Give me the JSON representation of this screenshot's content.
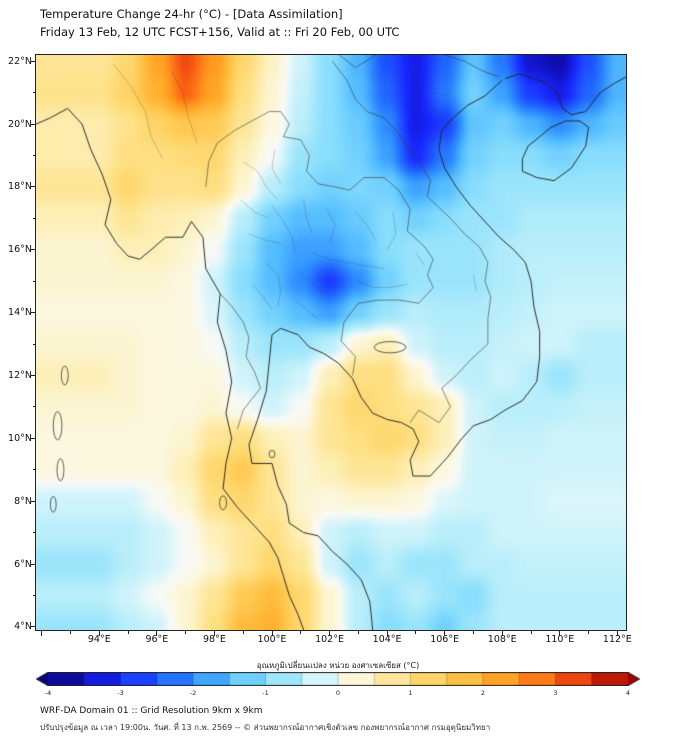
{
  "header": {
    "title_line1": "Temperature Change 24-hr (°C) - [Data Assimilation]",
    "title_line2": "Friday 13 Feb, 12 UTC FCST+156, Valid at :: Fri 20 Feb, 00 UTC"
  },
  "axes": {
    "lat_ticks": [
      {
        "value": 22,
        "label": "22°N"
      },
      {
        "value": 20,
        "label": "20°N"
      },
      {
        "value": 18,
        "label": "18°N"
      },
      {
        "value": 16,
        "label": "16°N"
      },
      {
        "value": 14,
        "label": "14°N"
      },
      {
        "value": 12,
        "label": "12°N"
      },
      {
        "value": 10,
        "label": "10°N"
      },
      {
        "value": 8,
        "label": "8°N"
      },
      {
        "value": 6,
        "label": "6°N"
      },
      {
        "value": 4,
        "label": "4°N"
      }
    ],
    "lon_ticks": [
      {
        "value": 94,
        "label": "94°E"
      },
      {
        "value": 96,
        "label": "96°E"
      },
      {
        "value": 98,
        "label": "98°E"
      },
      {
        "value": 100,
        "label": "100°E"
      },
      {
        "value": 102,
        "label": "102°E"
      },
      {
        "value": 104,
        "label": "104°E"
      },
      {
        "value": 106,
        "label": "106°E"
      },
      {
        "value": 108,
        "label": "108°E"
      },
      {
        "value": 110,
        "label": "110°E"
      },
      {
        "value": 112,
        "label": "112°E"
      }
    ]
  },
  "colorbar": {
    "label": "อุณหภูมิเปลี่ยนแปลง หน่วย องศาเซลเซียส (°C)",
    "range": [
      -4,
      4
    ],
    "ticks": [
      {
        "value": -4,
        "label": "-4"
      },
      {
        "value": -3,
        "label": "-3"
      },
      {
        "value": -2,
        "label": "-2"
      },
      {
        "value": -1,
        "label": "-1"
      },
      {
        "value": 0,
        "label": "0"
      },
      {
        "value": 1,
        "label": "1"
      },
      {
        "value": 2,
        "label": "2"
      },
      {
        "value": 3,
        "label": "3"
      },
      {
        "value": 4,
        "label": "4"
      }
    ]
  },
  "footer": {
    "line1": "WRF-DA Domain 01 :: Grid Resolution 9km x 9km",
    "line2": "ปรับปรุงข้อมูล ณ เวลา 19:00น. วันศ. ที่ 13 ก.พ. 2569 -- © ส่วนพยากรณ์อากาศเชิงตัวเลข กองพยากรณ์อากาศ กรมอุตุนิยมวิทยา"
  },
  "chart_data": {
    "type": "heatmap",
    "title": "Temperature Change 24-hr (°C) - [Data Assimilation]",
    "subtitle": "Friday 13 Feb, 12 UTC FCST+156, Valid at :: Fri 20 Feb, 00 UTC",
    "units": "°C",
    "legend_label": "อุณหภูมิเปลี่ยนแปลง หน่วย องศาเซลเซียส (°C)",
    "lon_range": [
      91.8,
      112.3
    ],
    "lat_range": [
      3.9,
      22.2
    ],
    "colorbar_range": [
      -4,
      4
    ],
    "grid_lon": [
      94,
      95,
      96,
      97,
      98,
      99,
      100,
      101,
      102,
      103,
      104,
      105,
      106,
      107,
      108,
      109,
      110,
      111,
      112
    ],
    "grid_lat": [
      22,
      21,
      20,
      19,
      18,
      17,
      16,
      15,
      14,
      13,
      12,
      11,
      10,
      9,
      8,
      7,
      6,
      5,
      4
    ],
    "values": [
      [
        0.8,
        1.2,
        2.2,
        3.2,
        2.4,
        1.2,
        0.4,
        -0.3,
        -1.0,
        -1.6,
        -2.6,
        -3.2,
        -2.4,
        -1.4,
        -2.2,
        -3.4,
        -3.6,
        -2.6,
        -1.6
      ],
      [
        0.9,
        1.3,
        2.0,
        3.0,
        2.2,
        1.0,
        0.3,
        -0.4,
        -1.0,
        -1.5,
        -2.4,
        -3.2,
        -2.2,
        -1.2,
        -1.8,
        -2.8,
        -3.2,
        -2.4,
        -1.6
      ],
      [
        0.6,
        0.9,
        1.3,
        1.6,
        1.5,
        0.8,
        0.2,
        -0.5,
        -1.0,
        -1.3,
        -2.0,
        -3.2,
        -2.8,
        -1.4,
        -1.2,
        -1.6,
        -2.0,
        -1.6,
        -1.3
      ],
      [
        0.6,
        1.0,
        1.0,
        1.1,
        1.2,
        0.5,
        0.0,
        -0.8,
        -1.0,
        -1.2,
        -1.8,
        -3.0,
        -2.2,
        -1.2,
        -1.0,
        -1.0,
        -1.2,
        -1.0,
        -1.0
      ],
      [
        0.8,
        1.2,
        0.9,
        0.9,
        1.0,
        0.3,
        -0.5,
        -1.0,
        -1.2,
        -1.1,
        -1.2,
        -1.8,
        -1.5,
        -1.0,
        -0.8,
        -0.8,
        -0.8,
        -0.8,
        -0.8
      ],
      [
        0.5,
        0.8,
        0.6,
        0.5,
        0.3,
        -0.5,
        -1.2,
        -1.5,
        -1.5,
        -1.3,
        -1.0,
        -1.2,
        -1.0,
        -0.8,
        -0.8,
        -0.6,
        -0.6,
        -0.6,
        -0.6
      ],
      [
        0.3,
        0.5,
        0.5,
        0.3,
        0.0,
        -0.8,
        -1.5,
        -1.8,
        -1.8,
        -1.5,
        -1.0,
        -0.8,
        -0.8,
        -0.8,
        -0.6,
        -0.5,
        -0.5,
        -0.5,
        -0.5
      ],
      [
        0.3,
        0.3,
        0.3,
        0.2,
        -0.3,
        -1.0,
        -1.5,
        -2.0,
        -2.8,
        -2.0,
        -1.2,
        -0.8,
        -0.8,
        -0.8,
        -0.6,
        -0.5,
        -0.4,
        -0.4,
        -0.4
      ],
      [
        0.2,
        0.2,
        0.2,
        0.2,
        -0.2,
        -0.8,
        -1.2,
        -1.5,
        -1.8,
        -1.2,
        -0.8,
        -0.5,
        -0.6,
        -0.6,
        -0.5,
        -0.4,
        -0.3,
        -0.3,
        -0.3
      ],
      [
        0.3,
        0.3,
        0.2,
        0.2,
        0.0,
        -0.5,
        -0.8,
        -0.8,
        -0.5,
        0.3,
        0.5,
        -0.3,
        -0.5,
        -0.5,
        -0.4,
        -0.3,
        -0.3,
        -0.5,
        -0.5
      ],
      [
        0.5,
        0.3,
        0.2,
        0.2,
        0.2,
        -0.3,
        -0.5,
        -0.3,
        0.5,
        1.0,
        1.0,
        0.3,
        -0.3,
        -0.5,
        -0.3,
        -0.5,
        -0.8,
        -0.5,
        -0.5
      ],
      [
        0.3,
        0.3,
        0.2,
        0.2,
        0.3,
        0.0,
        -0.3,
        0.0,
        0.8,
        1.2,
        1.0,
        0.8,
        0.5,
        -0.3,
        -0.5,
        -0.5,
        -0.5,
        -0.4,
        -0.4
      ],
      [
        0.2,
        0.2,
        0.2,
        0.3,
        0.8,
        1.0,
        0.5,
        0.3,
        0.8,
        1.0,
        1.2,
        1.0,
        0.5,
        -0.3,
        -0.4,
        -0.4,
        -0.3,
        -0.3,
        -0.3
      ],
      [
        0.2,
        0.2,
        0.2,
        0.5,
        1.2,
        1.5,
        0.8,
        0.3,
        0.5,
        0.8,
        0.8,
        0.5,
        0.2,
        -0.3,
        -0.3,
        -0.3,
        -0.3,
        -0.3,
        -0.3
      ],
      [
        -0.3,
        -0.3,
        0.0,
        0.3,
        1.0,
        1.2,
        0.8,
        0.3,
        0.2,
        0.3,
        0.3,
        0.2,
        -0.2,
        -0.3,
        -0.3,
        -0.3,
        -0.2,
        -0.2,
        -0.2
      ],
      [
        -0.5,
        -0.5,
        -0.3,
        0.0,
        0.5,
        0.8,
        1.0,
        0.5,
        -0.3,
        -0.5,
        -0.3,
        -0.3,
        -0.5,
        -0.5,
        -0.3,
        -0.3,
        -0.3,
        -0.3,
        -0.3
      ],
      [
        -0.8,
        -0.5,
        -0.3,
        0.0,
        0.3,
        0.8,
        1.2,
        0.8,
        -0.3,
        -0.8,
        -0.5,
        -0.8,
        -0.8,
        -0.5,
        -0.5,
        -0.4,
        -0.4,
        -0.4,
        -0.4
      ],
      [
        -0.5,
        -0.3,
        0.0,
        0.3,
        0.8,
        1.5,
        1.8,
        1.2,
        0.3,
        -0.5,
        -0.8,
        -0.5,
        -0.8,
        -1.0,
        -0.5,
        -0.5,
        -0.5,
        -0.5,
        -0.5
      ],
      [
        -0.8,
        -0.5,
        -0.3,
        0.3,
        1.0,
        1.8,
        2.0,
        1.2,
        0.3,
        -0.5,
        -1.0,
        -0.8,
        -1.2,
        -0.8,
        -0.5,
        -0.5,
        -0.5,
        -0.5,
        -0.5
      ]
    ],
    "colormap_stops": [
      [
        -4.0,
        [
          8,
          6,
          120
        ]
      ],
      [
        -3.5,
        [
          16,
          16,
          190
        ]
      ],
      [
        -3.0,
        [
          24,
          40,
          255
        ]
      ],
      [
        -2.5,
        [
          30,
          90,
          255
        ]
      ],
      [
        -2.0,
        [
          45,
          140,
          255
        ]
      ],
      [
        -1.5,
        [
          85,
          190,
          255
        ]
      ],
      [
        -1.0,
        [
          135,
          222,
          252
        ]
      ],
      [
        -0.5,
        [
          185,
          238,
          250
        ]
      ],
      [
        -0.2,
        [
          218,
          246,
          250
        ]
      ],
      [
        0.0,
        [
          247,
          249,
          246
        ]
      ],
      [
        0.2,
        [
          252,
          248,
          224
        ]
      ],
      [
        0.5,
        [
          253,
          239,
          183
        ]
      ],
      [
        1.0,
        [
          254,
          223,
          128
        ]
      ],
      [
        1.5,
        [
          255,
          203,
          84
        ]
      ],
      [
        2.0,
        [
          255,
          178,
          48
        ]
      ],
      [
        2.5,
        [
          255,
          148,
          28
        ]
      ],
      [
        3.0,
        [
          250,
          98,
          18
        ]
      ],
      [
        3.5,
        [
          222,
          44,
          10
        ]
      ],
      [
        4.0,
        [
          158,
          4,
          4
        ]
      ]
    ]
  }
}
